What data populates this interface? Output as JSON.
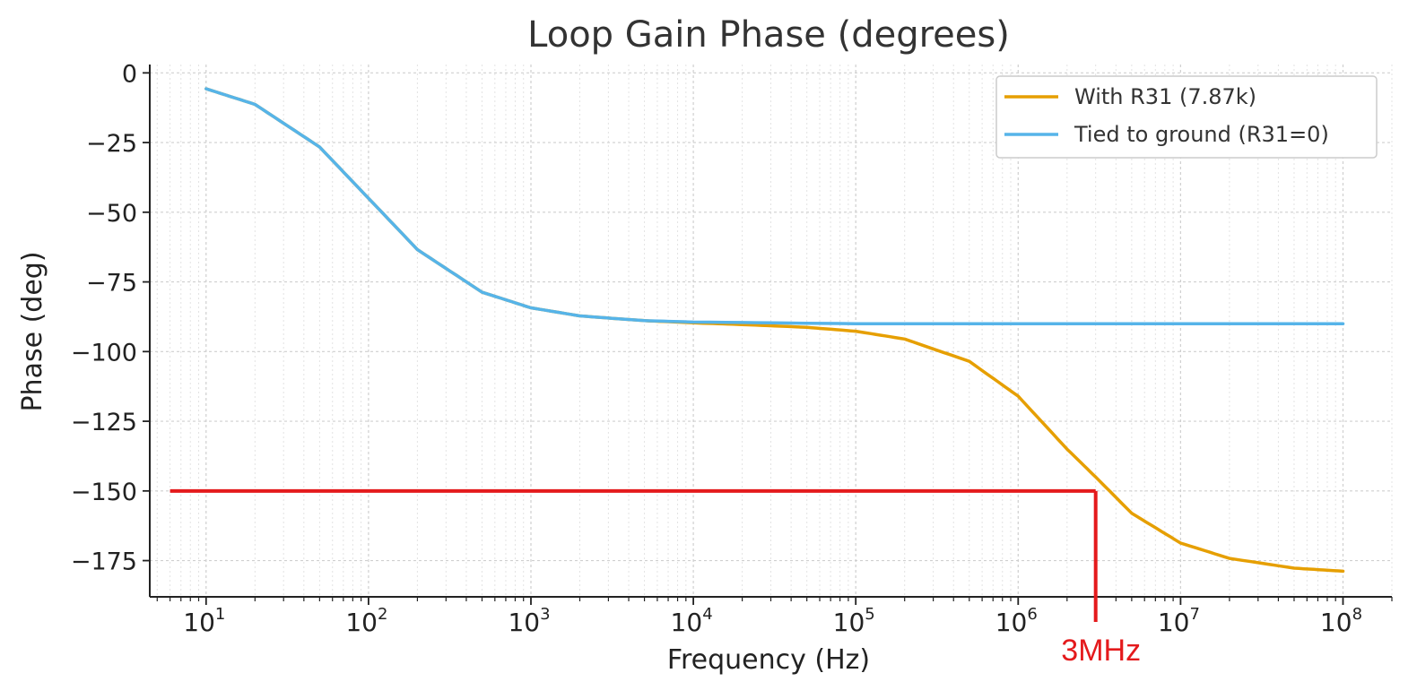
{
  "chart_data": {
    "type": "line",
    "title": "Loop Gain Phase (degrees)",
    "xlabel": "Frequency (Hz)",
    "ylabel": "Phase (deg)",
    "x_scale": "log",
    "xlim": [
      4.5,
      200000000
    ],
    "ylim": [
      -188,
      3
    ],
    "grid": true,
    "legend_position": "top-right",
    "x_ticks": [
      {
        "base": "10",
        "exp": "1",
        "value": 10
      },
      {
        "base": "10",
        "exp": "2",
        "value": 100
      },
      {
        "base": "10",
        "exp": "3",
        "value": 1000
      },
      {
        "base": "10",
        "exp": "4",
        "value": 10000
      },
      {
        "base": "10",
        "exp": "5",
        "value": 100000
      },
      {
        "base": "10",
        "exp": "6",
        "value": 1000000
      },
      {
        "base": "10",
        "exp": "7",
        "value": 10000000
      },
      {
        "base": "10",
        "exp": "8",
        "value": 100000000
      }
    ],
    "y_ticks": [
      {
        "label": "0",
        "value": 0
      },
      {
        "label": "−25",
        "value": -25
      },
      {
        "label": "−50",
        "value": -50
      },
      {
        "label": "−75",
        "value": -75
      },
      {
        "label": "−100",
        "value": -100
      },
      {
        "label": "−125",
        "value": -125
      },
      {
        "label": "−150",
        "value": -150
      },
      {
        "label": "−175",
        "value": -175
      }
    ],
    "series": [
      {
        "name": "With R31 (7.87k)",
        "color": "#E69F00",
        "x": [
          10,
          20,
          50,
          100,
          200,
          500,
          1000,
          2000,
          5000,
          10000,
          20000,
          50000,
          100000,
          200000,
          500000,
          1000000,
          2000000,
          3000000,
          5000000,
          10000000,
          20000000,
          50000000,
          100000000
        ],
        "y": [
          -5.7,
          -11.3,
          -26.6,
          -45,
          -63.4,
          -78.7,
          -84.3,
          -87.2,
          -88.9,
          -89.7,
          -90.3,
          -91.3,
          -92.7,
          -95.5,
          -103.5,
          -116,
          -135,
          -145,
          -158,
          -168.7,
          -174.2,
          -177.7,
          -178.8
        ]
      },
      {
        "name": "Tied to ground (R31=0)",
        "color": "#56B4E9",
        "x": [
          10,
          20,
          50,
          100,
          200,
          500,
          1000,
          2000,
          5000,
          10000,
          100000,
          1000000,
          10000000,
          100000000
        ],
        "y": [
          -5.7,
          -11.3,
          -26.6,
          -45,
          -63.4,
          -78.7,
          -84.3,
          -87.2,
          -88.9,
          -89.4,
          -90,
          -90,
          -90,
          -90
        ]
      }
    ],
    "annotation": {
      "label": "3MHz",
      "color": "#e41a1c",
      "phase_level": -150,
      "frequency": 3000000,
      "x_start": 6
    }
  }
}
